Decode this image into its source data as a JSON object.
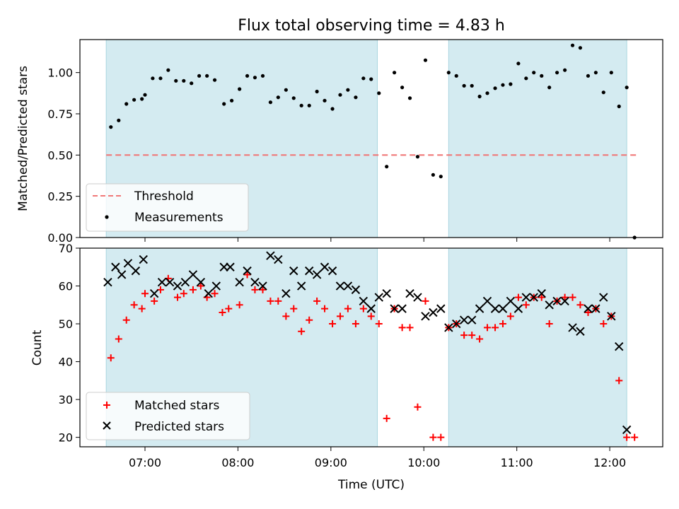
{
  "chart_data": {
    "title": "Flux total observing time = 4.83 h",
    "xlabel": "Time (UTC)",
    "x_tick_labels": [
      "07:00",
      "08:00",
      "09:00",
      "10:00",
      "11:00",
      "12:00"
    ],
    "x_ticks_hours": [
      7,
      8,
      9,
      10,
      11,
      12
    ],
    "xlim_hours": [
      6.3,
      12.57
    ],
    "shaded_intervals_hours": [
      [
        6.583,
        9.5
      ],
      [
        10.267,
        12.183
      ]
    ],
    "shade_color": "#d4ebf1",
    "panels": [
      {
        "type": "scatter",
        "ylabel": "Matched/Predicted stars",
        "ylim": [
          0,
          1.2
        ],
        "y_ticks": [
          0.0,
          0.25,
          0.5,
          0.75,
          1.0
        ],
        "y_tick_labels": [
          "0.00",
          "0.25",
          "0.50",
          "0.75",
          "1.00"
        ],
        "legend": {
          "placement": "lower-left",
          "entries": [
            "Threshold",
            "Measurements"
          ]
        },
        "threshold": {
          "name": "Threshold",
          "value": 0.5,
          "x_range": [
            6.583,
            12.3
          ],
          "color": "#f07878",
          "style": "dashed"
        },
        "series": [
          {
            "name": "Measurements",
            "marker": "dot",
            "color": "#000000",
            "x": [
              6.633,
              6.717,
              6.8,
              6.883,
              6.967,
              7.0,
              7.083,
              7.167,
              7.25,
              7.333,
              7.417,
              7.5,
              7.583,
              7.667,
              7.75,
              7.85,
              7.933,
              8.017,
              8.1,
              8.183,
              8.267,
              8.35,
              8.433,
              8.517,
              8.6,
              8.683,
              8.767,
              8.85,
              8.933,
              9.017,
              9.1,
              9.183,
              9.267,
              9.35,
              9.433,
              9.517,
              9.6,
              9.683,
              9.767,
              9.85,
              9.933,
              10.017,
              10.1,
              10.183,
              10.267,
              10.35,
              10.433,
              10.517,
              10.6,
              10.683,
              10.767,
              10.85,
              10.933,
              11.017,
              11.1,
              11.183,
              11.267,
              11.35,
              11.433,
              11.517,
              11.6,
              11.683,
              11.767,
              11.85,
              11.933,
              12.017,
              12.1,
              12.183,
              12.267
            ],
            "y": [
              0.67,
              0.71,
              0.81,
              0.835,
              0.84,
              0.865,
              0.965,
              0.965,
              1.015,
              0.95,
              0.95,
              0.935,
              0.98,
              0.98,
              0.955,
              0.81,
              0.83,
              0.9,
              0.98,
              0.97,
              0.98,
              0.82,
              0.85,
              0.895,
              0.845,
              0.8,
              0.8,
              0.885,
              0.83,
              0.78,
              0.865,
              0.895,
              0.85,
              0.965,
              0.96,
              0.875,
              0.43,
              1.0,
              0.91,
              0.845,
              0.49,
              1.075,
              0.38,
              0.37,
              1.0,
              0.98,
              0.92,
              0.92,
              0.855,
              0.875,
              0.905,
              0.925,
              0.93,
              1.055,
              0.965,
              1.0,
              0.98,
              0.91,
              1.0,
              1.015,
              1.165,
              1.15,
              0.98,
              1.0,
              0.88,
              1.0,
              0.795,
              0.91,
              0.0
            ]
          }
        ]
      },
      {
        "type": "scatter",
        "ylabel": "Count",
        "ylim": [
          17.5,
          70
        ],
        "y_ticks": [
          20,
          30,
          40,
          50,
          60,
          70
        ],
        "y_tick_labels": [
          "20",
          "30",
          "40",
          "50",
          "60",
          "70"
        ],
        "legend": {
          "placement": "lower-left",
          "entries": [
            "Matched stars",
            "Predicted stars"
          ]
        },
        "series": [
          {
            "name": "Matched stars",
            "marker": "plus",
            "color": "#ff0000",
            "x": [
              6.633,
              6.717,
              6.8,
              6.883,
              6.967,
              7.0,
              7.1,
              7.167,
              7.25,
              7.35,
              7.417,
              7.517,
              7.6,
              7.667,
              7.75,
              7.833,
              7.9,
              8.017,
              8.1,
              8.183,
              8.267,
              8.35,
              8.433,
              8.517,
              8.6,
              8.683,
              8.767,
              8.85,
              8.933,
              9.017,
              9.1,
              9.183,
              9.267,
              9.35,
              9.433,
              9.517,
              9.6,
              9.683,
              9.767,
              9.85,
              9.933,
              10.017,
              10.1,
              10.183,
              10.267,
              10.35,
              10.433,
              10.517,
              10.6,
              10.683,
              10.767,
              10.85,
              10.933,
              11.017,
              11.1,
              11.183,
              11.267,
              11.35,
              11.433,
              11.517,
              11.6,
              11.683,
              11.767,
              11.85,
              11.933,
              12.017,
              12.1,
              12.183,
              12.267
            ],
            "y": [
              41,
              46,
              51,
              55,
              54,
              58,
              56,
              59,
              62,
              57,
              58,
              59,
              60,
              57,
              58,
              53,
              54,
              55,
              63,
              59,
              59,
              56,
              56,
              52,
              54,
              48,
              51,
              56,
              54,
              50,
              52,
              54,
              50,
              54,
              52,
              50,
              25,
              54,
              49,
              49,
              28,
              56,
              20,
              20,
              49,
              50,
              47,
              47,
              46,
              49,
              49,
              50,
              52,
              57,
              55,
              57,
              57,
              50,
              56,
              57,
              57,
              55,
              53,
              54,
              50,
              52,
              35,
              20,
              20
            ]
          },
          {
            "name": "Predicted stars",
            "marker": "x",
            "color": "#000000",
            "x": [
              6.6,
              6.683,
              6.75,
              6.817,
              6.9,
              6.983,
              7.1,
              7.183,
              7.267,
              7.35,
              7.433,
              7.517,
              7.6,
              7.683,
              7.767,
              7.85,
              7.917,
              8.017,
              8.1,
              8.183,
              8.267,
              8.35,
              8.433,
              8.517,
              8.6,
              8.683,
              8.767,
              8.85,
              8.933,
              9.017,
              9.1,
              9.183,
              9.267,
              9.35,
              9.433,
              9.517,
              9.6,
              9.683,
              9.767,
              9.85,
              9.933,
              10.017,
              10.1,
              10.183,
              10.267,
              10.35,
              10.433,
              10.517,
              10.6,
              10.683,
              10.767,
              10.85,
              10.933,
              11.017,
              11.1,
              11.183,
              11.267,
              11.35,
              11.433,
              11.517,
              11.6,
              11.683,
              11.767,
              11.85,
              11.933,
              12.017,
              12.1,
              12.183
            ],
            "y": [
              61,
              65,
              63,
              66,
              64,
              67,
              58,
              61,
              61,
              60,
              61,
              63,
              61,
              58,
              60,
              65,
              65,
              61,
              64,
              61,
              60,
              68,
              67,
              58,
              64,
              60,
              64,
              63,
              65,
              64,
              60,
              60,
              59,
              56,
              54,
              57,
              58,
              54,
              54,
              58,
              57,
              52,
              53,
              54,
              49,
              50,
              51,
              51,
              54,
              56,
              54,
              54,
              56,
              54,
              57,
              57,
              58,
              55,
              56,
              56,
              49,
              48,
              54,
              54,
              57,
              52,
              44,
              22
            ]
          }
        ]
      }
    ]
  }
}
